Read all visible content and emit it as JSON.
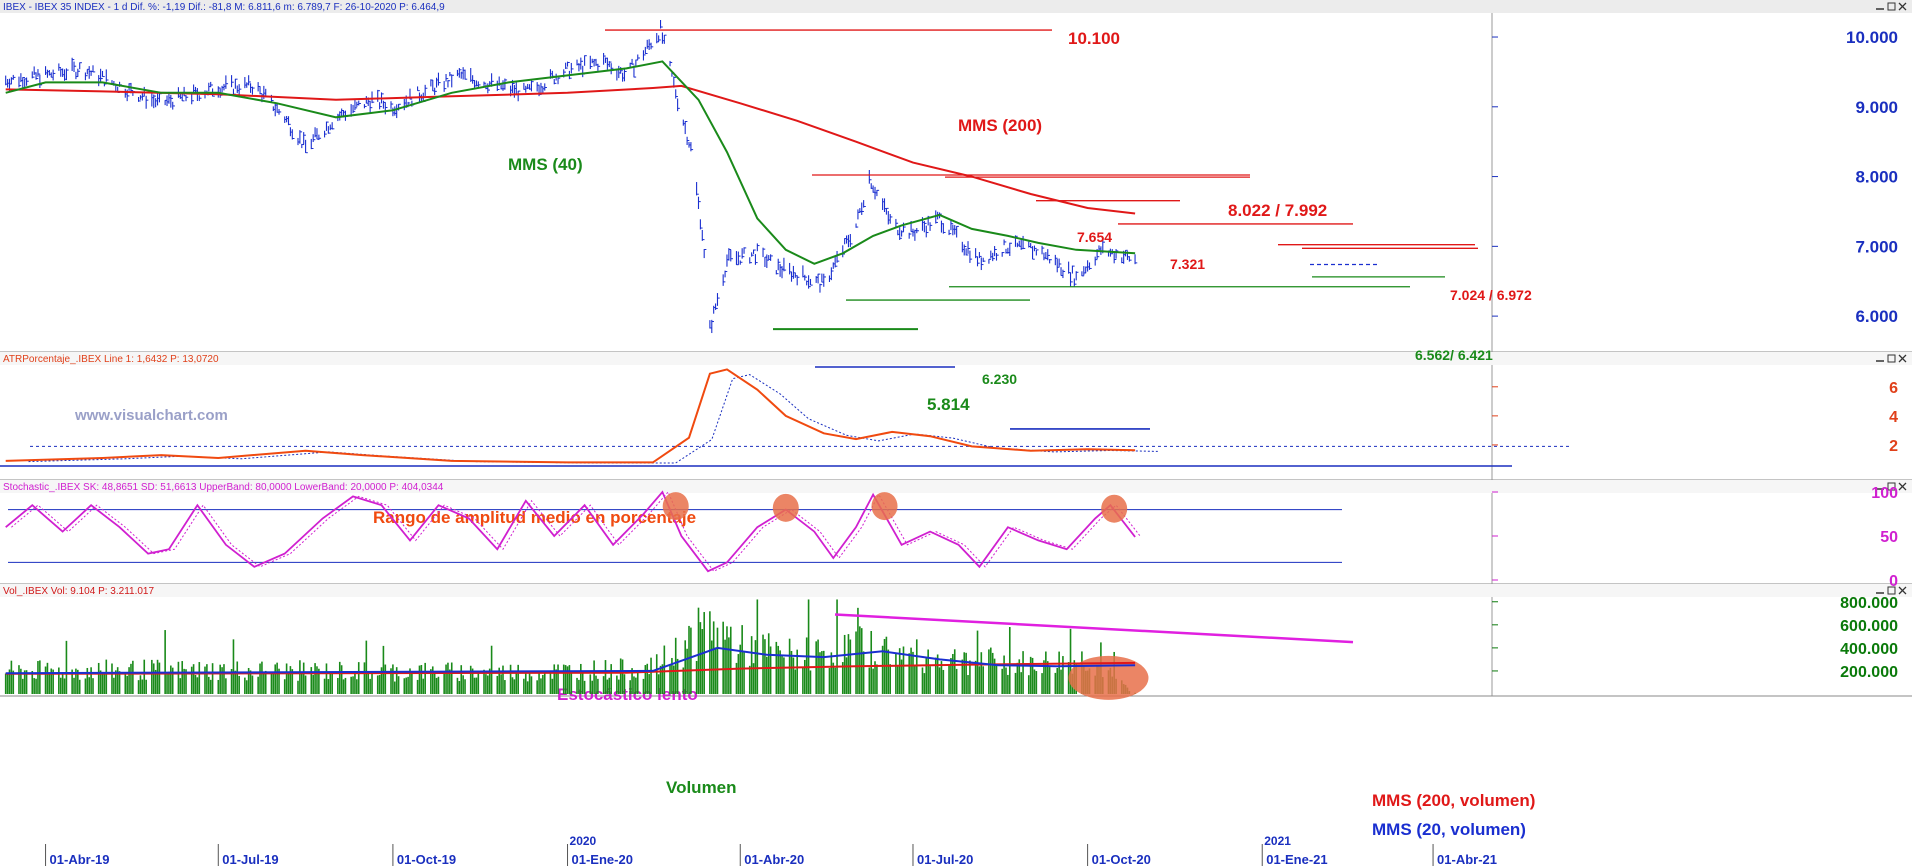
{
  "x_axis": {
    "labels": [
      "01-Abr-19",
      "01-Jul-19",
      "01-Oct-19",
      "01-Ene-20",
      "01-Abr-20",
      "01-Jul-20",
      "01-Oct-20",
      "01-Ene-21",
      "01-Abr-21"
    ],
    "year_marks": [
      "2020",
      "2021"
    ]
  },
  "panels": [
    {
      "id": "price",
      "header": "IBEX - IBEX 35 INDEX - 1 d  Dif. %: -1,19  Dif.: -81,8  M: 6.811,6  m: 6.789,7  F: 26-10-2020  P: 6.464,9",
      "header_color": "#1a2fbf",
      "y_ticks": [
        "10.000",
        "9.000",
        "8.000",
        "7.000",
        "6.000"
      ],
      "tick_color": "#1a2fbf",
      "watermark": "www.visualchart.com"
    },
    {
      "id": "atr",
      "header": "ATRPorcentaje_.IBEX  Line 1: 1,6432  P: 13,0720",
      "header_color": "#e0401a",
      "y_ticks": [
        "6",
        "4",
        "2"
      ],
      "tick_color": "#e0401a"
    },
    {
      "id": "stoch",
      "header": "Stochastic_.IBEX  SK: 48,8651  SD: 51,6613  UpperBand: 80,0000  LowerBand: 20,0000  P: 404,0344",
      "header_color": "#d020d0",
      "y_ticks": [
        "100",
        "50",
        "0"
      ],
      "tick_color": "#d020d0"
    },
    {
      "id": "vol",
      "header": "Vol_.IBEX  Vol: 9.104  P: 3.211.017",
      "header_color": "#d01818",
      "y_ticks": [
        "800.000",
        "600.000",
        "400.000",
        "200.000"
      ],
      "tick_color": "#0a7a0a"
    }
  ],
  "annotations": {
    "p10100": "10.100",
    "mms200": "MMS (200)",
    "mms40": "MMS (40)",
    "p8022": "8.022 / 7.992",
    "p7654": "7.654",
    "p7321": "7.321",
    "p7024": "7.024 / 6.972",
    "p6562": "6.562/ 6.421",
    "p6230": "6.230",
    "p5814": "5.814",
    "atr_label": "Rango de amplitud medio en porcentaje",
    "stoch_label": "Estocástico lento",
    "vol_label": "Volumen",
    "vol_mms200": "MMS (200, volumen)",
    "vol_mms20": "MMS (20, volumen)"
  },
  "colors": {
    "price_bars": "#1a2fd0",
    "mms40": "#1a8a1a",
    "mms200": "#e01818",
    "atr_line": "#f04a10",
    "atr_signal": "#1a2fbf",
    "stoch_k": "#d020d0",
    "vol_bars": "#1a8a1a",
    "vol_ma20": "#1a2fd0",
    "vol_ma200": "#e01818",
    "highlight": "#e8704a",
    "support": "#1a8a1a",
    "resistance": "#e01818"
  },
  "chart_data": [
    {
      "type": "line",
      "title": "IBEX 35 INDEX",
      "x_range": [
        "2019-03-08",
        "2021-05-01"
      ],
      "ylim": [
        5500,
        10330
      ],
      "series": [
        {
          "name": "IBEX",
          "points": [
            [
              "2019-03-11",
              9380
            ],
            [
              "2019-04-01",
              9450
            ],
            [
              "2019-04-20",
              9550
            ],
            [
              "2019-05-10",
              9300
            ],
            [
              "2019-05-31",
              9050
            ],
            [
              "2019-06-15",
              9150
            ],
            [
              "2019-07-01",
              9280
            ],
            [
              "2019-07-20",
              9300
            ],
            [
              "2019-08-05",
              8850
            ],
            [
              "2019-08-16",
              8420
            ],
            [
              "2019-09-01",
              8850
            ],
            [
              "2019-09-20",
              9100
            ],
            [
              "2019-10-01",
              9000
            ],
            [
              "2019-10-20",
              9250
            ],
            [
              "2019-11-05",
              9450
            ],
            [
              "2019-11-25",
              9300
            ],
            [
              "2019-12-10",
              9200
            ],
            [
              "2019-12-31",
              9520
            ],
            [
              "2020-01-20",
              9650
            ],
            [
              "2020-02-01",
              9450
            ],
            [
              "2020-02-19",
              10100
            ],
            [
              "2020-02-28",
              9100
            ],
            [
              "2020-03-06",
              8400
            ],
            [
              "2020-03-12",
              7200
            ],
            [
              "2020-03-16",
              5814
            ],
            [
              "2020-03-25",
              6800
            ],
            [
              "2020-04-10",
              6900
            ],
            [
              "2020-04-20",
              6700
            ],
            [
              "2020-05-01",
              6600
            ],
            [
              "2020-05-15",
              6450
            ],
            [
              "2020-06-01",
              7300
            ],
            [
              "2020-06-08",
              7992
            ],
            [
              "2020-06-20",
              7300
            ],
            [
              "2020-07-01",
              7200
            ],
            [
              "2020-07-15",
              7400
            ],
            [
              "2020-07-25",
              7100
            ],
            [
              "2020-08-05",
              6800
            ],
            [
              "2020-08-20",
              7000
            ],
            [
              "2020-09-05",
              6950
            ],
            [
              "2020-09-25",
              6550
            ],
            [
              "2020-10-08",
              6950
            ],
            [
              "2020-10-26",
              6811
            ]
          ]
        },
        {
          "name": "MMS (40)",
          "points": [
            [
              "2019-03-11",
              9200
            ],
            [
              "2019-04-01",
              9350
            ],
            [
              "2019-05-01",
              9350
            ],
            [
              "2019-06-01",
              9200
            ],
            [
              "2019-07-01",
              9200
            ],
            [
              "2019-08-01",
              9050
            ],
            [
              "2019-09-01",
              8850
            ],
            [
              "2019-10-01",
              8950
            ],
            [
              "2019-11-01",
              9200
            ],
            [
              "2019-12-01",
              9350
            ],
            [
              "2020-01-01",
              9450
            ],
            [
              "2020-02-01",
              9550
            ],
            [
              "2020-02-20",
              9650
            ],
            [
              "2020-03-10",
              9100
            ],
            [
              "2020-03-25",
              8350
            ],
            [
              "2020-04-10",
              7400
            ],
            [
              "2020-04-25",
              6950
            ],
            [
              "2020-05-10",
              6750
            ],
            [
              "2020-05-25",
              6900
            ],
            [
              "2020-06-10",
              7150
            ],
            [
              "2020-06-25",
              7300
            ],
            [
              "2020-07-15",
              7450
            ],
            [
              "2020-08-01",
              7250
            ],
            [
              "2020-08-20",
              7150
            ],
            [
              "2020-09-05",
              7050
            ],
            [
              "2020-09-25",
              6950
            ],
            [
              "2020-10-26",
              6900
            ]
          ]
        },
        {
          "name": "MMS (200)",
          "points": [
            [
              "2019-03-11",
              9250
            ],
            [
              "2019-05-01",
              9220
            ],
            [
              "2019-07-01",
              9180
            ],
            [
              "2019-09-01",
              9100
            ],
            [
              "2019-11-01",
              9150
            ],
            [
              "2020-01-01",
              9200
            ],
            [
              "2020-02-15",
              9270
            ],
            [
              "2020-03-01",
              9300
            ],
            [
              "2020-04-01",
              9050
            ],
            [
              "2020-05-01",
              8800
            ],
            [
              "2020-06-01",
              8500
            ],
            [
              "2020-07-01",
              8200
            ],
            [
              "2020-08-01",
              8000
            ],
            [
              "2020-09-01",
              7750
            ],
            [
              "2020-10-01",
              7550
            ],
            [
              "2020-10-26",
              7470
            ]
          ]
        }
      ],
      "levels": [
        10100,
        8022,
        7992,
        7654,
        7321,
        7024,
        6972,
        6562,
        6421,
        6230,
        5814
      ]
    },
    {
      "type": "line",
      "title": "ATRPorcentaje_.IBEX",
      "ylim": [
        0,
        7.5
      ],
      "series": [
        {
          "name": "Line 1",
          "points": [
            [
              "2019-03-11",
              0.9
            ],
            [
              "2019-05-01",
              1.1
            ],
            [
              "2019-06-01",
              1.3
            ],
            [
              "2019-07-01",
              1.1
            ],
            [
              "2019-08-16",
              1.6
            ],
            [
              "2019-09-15",
              1.3
            ],
            [
              "2019-11-01",
              0.9
            ],
            [
              "2020-01-01",
              0.8
            ],
            [
              "2020-02-15",
              0.8
            ],
            [
              "2020-03-05",
              2.5
            ],
            [
              "2020-03-16",
              6.9
            ],
            [
              "2020-03-25",
              7.2
            ],
            [
              "2020-04-10",
              5.8
            ],
            [
              "2020-04-25",
              4.0
            ],
            [
              "2020-05-15",
              2.8
            ],
            [
              "2020-06-01",
              2.4
            ],
            [
              "2020-06-20",
              2.9
            ],
            [
              "2020-07-10",
              2.6
            ],
            [
              "2020-08-01",
              1.9
            ],
            [
              "2020-09-01",
              1.6
            ],
            [
              "2020-10-01",
              1.7
            ],
            [
              "2020-10-26",
              1.64
            ]
          ]
        }
      ]
    },
    {
      "type": "line",
      "title": "Stochastic_.IBEX",
      "ylim": [
        0,
        100
      ],
      "bands": [
        20,
        80
      ],
      "series": [
        {
          "name": "SK",
          "points": [
            [
              "2019-03-11",
              60
            ],
            [
              "2019-03-25",
              85
            ],
            [
              "2019-04-10",
              55
            ],
            [
              "2019-04-25",
              85
            ],
            [
              "2019-05-10",
              60
            ],
            [
              "2019-05-25",
              30
            ],
            [
              "2019-06-05",
              35
            ],
            [
              "2019-06-20",
              85
            ],
            [
              "2019-07-05",
              40
            ],
            [
              "2019-07-20",
              15
            ],
            [
              "2019-08-05",
              30
            ],
            [
              "2019-08-25",
              70
            ],
            [
              "2019-09-10",
              95
            ],
            [
              "2019-09-25",
              85
            ],
            [
              "2019-10-10",
              45
            ],
            [
              "2019-10-25",
              85
            ],
            [
              "2019-11-10",
              70
            ],
            [
              "2019-11-25",
              35
            ],
            [
              "2019-12-10",
              90
            ],
            [
              "2019-12-25",
              50
            ],
            [
              "2020-01-10",
              85
            ],
            [
              "2020-01-25",
              40
            ],
            [
              "2020-02-10",
              75
            ],
            [
              "2020-02-20",
              100
            ],
            [
              "2020-03-01",
              50
            ],
            [
              "2020-03-15",
              10
            ],
            [
              "2020-03-25",
              20
            ],
            [
              "2020-04-10",
              60
            ],
            [
              "2020-04-25",
              80
            ],
            [
              "2020-05-10",
              55
            ],
            [
              "2020-05-20",
              25
            ],
            [
              "2020-06-01",
              60
            ],
            [
              "2020-06-10",
              97
            ],
            [
              "2020-06-25",
              40
            ],
            [
              "2020-07-10",
              55
            ],
            [
              "2020-07-25",
              40
            ],
            [
              "2020-08-05",
              15
            ],
            [
              "2020-08-20",
              60
            ],
            [
              "2020-09-05",
              45
            ],
            [
              "2020-09-20",
              35
            ],
            [
              "2020-10-05",
              70
            ],
            [
              "2020-10-13",
              85
            ],
            [
              "2020-10-26",
              49
            ]
          ]
        }
      ]
    },
    {
      "type": "bar",
      "title": "Vol_.IBEX",
      "ylim": [
        0,
        850000
      ],
      "series": [
        {
          "name": "Vol",
          "points": [
            [
              "2019-03-11",
              200000
            ],
            [
              "2019-06-01",
              210000
            ],
            [
              "2019-09-01",
              200000
            ],
            [
              "2019-12-01",
              190000
            ],
            [
              "2020-02-15",
              220000
            ],
            [
              "2020-03-01",
              400000
            ],
            [
              "2020-03-16",
              600000
            ],
            [
              "2020-04-01",
              420000
            ],
            [
              "2020-05-01",
              330000
            ],
            [
              "2020-06-01",
              420000
            ],
            [
              "2020-07-01",
              330000
            ],
            [
              "2020-08-01",
              290000
            ],
            [
              "2020-09-01",
              260000
            ],
            [
              "2020-10-01",
              300000
            ],
            [
              "2020-10-26",
              9104
            ]
          ]
        },
        {
          "name": "MMS (20, volumen)",
          "points": [
            [
              "2019-03-11",
              180000
            ],
            [
              "2020-02-15",
              200000
            ],
            [
              "2020-03-20",
              400000
            ],
            [
              "2020-04-15",
              340000
            ],
            [
              "2020-05-15",
              320000
            ],
            [
              "2020-06-15",
              370000
            ],
            [
              "2020-07-15",
              300000
            ],
            [
              "2020-08-15",
              250000
            ],
            [
              "2020-09-15",
              240000
            ],
            [
              "2020-10-26",
              250000
            ]
          ]
        },
        {
          "name": "MMS (200, volumen)",
          "points": [
            [
              "2019-03-11",
              175000
            ],
            [
              "2020-02-01",
              185000
            ],
            [
              "2020-04-01",
              220000
            ],
            [
              "2020-06-01",
              240000
            ],
            [
              "2020-08-01",
              255000
            ],
            [
              "2020-10-26",
              270000
            ]
          ]
        }
      ]
    }
  ]
}
